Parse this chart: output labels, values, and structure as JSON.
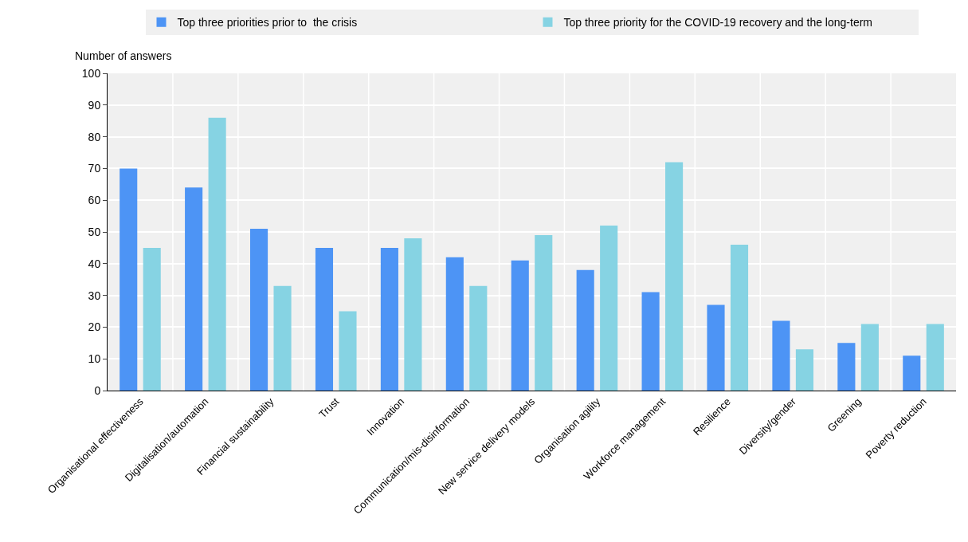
{
  "chart_data": {
    "type": "bar",
    "ylabel": "Number of answers",
    "categories": [
      "Organisational effectiveness",
      "Digitalisation/automation",
      "Financial sustainability",
      "Trust",
      "Innovation",
      "Communication/mis-disinformation",
      "New service delivery models",
      "Organisation agility",
      "Workforce management",
      "Resilience",
      "Diversity/gender",
      "Greening",
      "Poverty reduction"
    ],
    "series": [
      {
        "name": "Top three priorities prior to  the crisis",
        "color": "#4d94f5",
        "values": [
          70,
          64,
          51,
          45,
          45,
          42,
          41,
          38,
          31,
          27,
          22,
          15,
          11
        ]
      },
      {
        "name": "Top three priority for the COVID-19 recovery and the long-term",
        "color": "#86d3e3",
        "values": [
          45,
          86,
          33,
          25,
          48,
          33,
          49,
          52,
          72,
          46,
          13,
          21,
          21
        ]
      }
    ],
    "ylim": [
      0,
      100
    ],
    "yticks": [
      0,
      10,
      20,
      30,
      40,
      50,
      60,
      70,
      80,
      90,
      100
    ],
    "grid": true,
    "legend": "top"
  }
}
